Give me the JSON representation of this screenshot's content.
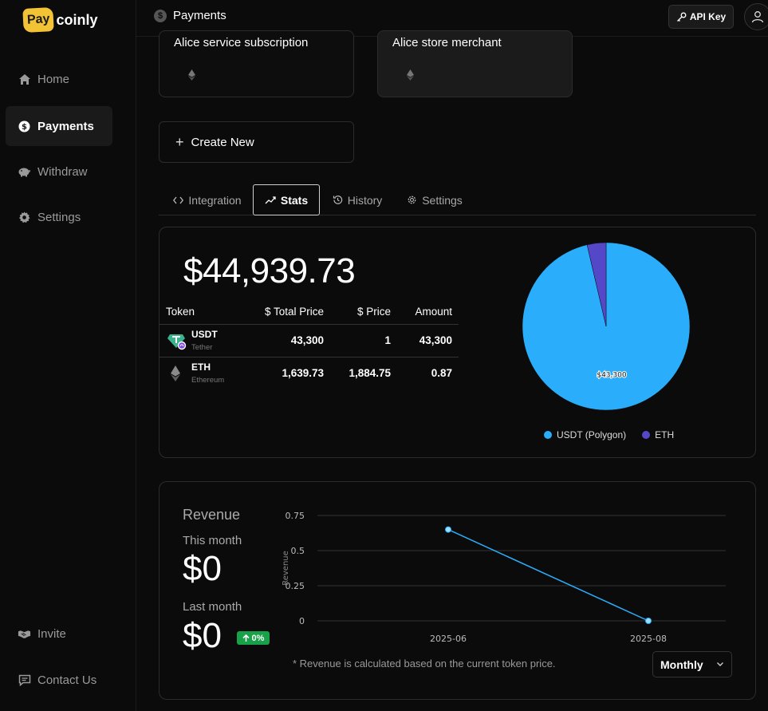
{
  "brand": {
    "pay": "Pay",
    "coinly": "coinly",
    "accent": "#f2c335"
  },
  "sidebar": {
    "items": [
      {
        "label": "Home",
        "icon": "home-icon"
      },
      {
        "label": "Payments",
        "icon": "dollar-icon",
        "active": true
      },
      {
        "label": "Withdraw",
        "icon": "piggy-bank-icon"
      },
      {
        "label": "Settings",
        "icon": "gear-icon"
      }
    ],
    "bottom": [
      {
        "label": "Invite",
        "icon": "handshake-icon"
      },
      {
        "label": "Contact Us",
        "icon": "message-icon"
      }
    ]
  },
  "header": {
    "title": "Payments",
    "api_key_label": "API Key"
  },
  "projects": [
    {
      "title": "Alice service subscription"
    },
    {
      "title": "Alice store merchant"
    }
  ],
  "create_new_label": "Create New",
  "tabs": [
    {
      "label": "Integration",
      "icon": "code-icon"
    },
    {
      "label": "Stats",
      "icon": "trend-icon",
      "active": true
    },
    {
      "label": "History",
      "icon": "history-icon"
    },
    {
      "label": "Settings",
      "icon": "gear-icon"
    }
  ],
  "stats": {
    "total": "$44,939.73",
    "columns": {
      "token": "Token",
      "total_price": "$ Total Price",
      "price": "$ Price",
      "amount": "Amount"
    },
    "rows": [
      {
        "token": "USDT",
        "sub": "Tether",
        "total_price": "43,300",
        "price": "1",
        "amount": "43,300"
      },
      {
        "token": "ETH",
        "sub": "Ethereum",
        "total_price": "1,639.73",
        "price": "1,884.75",
        "amount": "0.87"
      }
    ]
  },
  "pie_chart": {
    "chart_data": {
      "type": "pie",
      "slices": [
        {
          "name": "USDT (Polygon)",
          "value": 43300,
          "color": "#2aaefc",
          "label": "$43,300"
        },
        {
          "name": "ETH",
          "value": 1639.73,
          "color": "#5548c8"
        }
      ],
      "legend": "bottom"
    }
  },
  "revenue": {
    "title": "Revenue",
    "this_month_label": "This month",
    "this_month_value": "$0",
    "last_month_label": "Last month",
    "last_month_value": "$0",
    "change_badge": "0%",
    "note": "* Revenue is calculated based on the current token price.",
    "period": "Monthly"
  },
  "chart_data": {
    "type": "line",
    "x": [
      "2025-06",
      "2025-08"
    ],
    "series": [
      {
        "values": [
          0.65,
          0
        ],
        "color": "#2aaefc"
      }
    ],
    "ylabel": "Revenue",
    "yticks": [
      "0",
      "0.25",
      "0.5",
      "0.75"
    ],
    "ylim": [
      0,
      0.75
    ],
    "grid": true
  }
}
